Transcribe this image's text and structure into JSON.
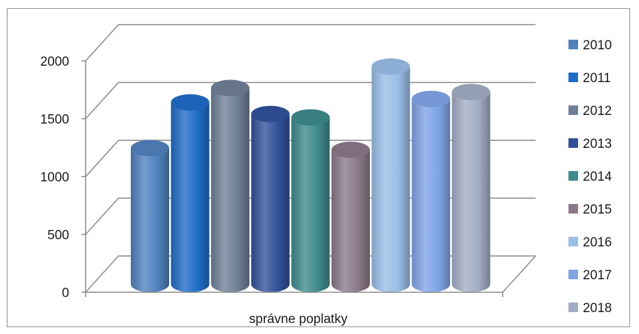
{
  "chart_data": {
    "type": "bar",
    "categories": [
      "správne poplatky"
    ],
    "series": [
      {
        "name": "2010",
        "values": [
          1175
        ],
        "color": "#4f81bd"
      },
      {
        "name": "2011",
        "values": [
          1570
        ],
        "color": "#1f6cc7"
      },
      {
        "name": "2012",
        "values": [
          1695
        ],
        "color": "#6f7f96"
      },
      {
        "name": "2013",
        "values": [
          1470
        ],
        "color": "#30509a"
      },
      {
        "name": "2014",
        "values": [
          1440
        ],
        "color": "#3e8a8c"
      },
      {
        "name": "2015",
        "values": [
          1160
        ],
        "color": "#8a7888"
      },
      {
        "name": "2016",
        "values": [
          1880
        ],
        "color": "#98bde6"
      },
      {
        "name": "2017",
        "values": [
          1600
        ],
        "color": "#7fa4e6"
      },
      {
        "name": "2018",
        "values": [
          1660
        ],
        "color": "#a2adc4"
      }
    ],
    "y_ticks": [
      0,
      500,
      1000,
      1500,
      2000
    ],
    "ylim": [
      0,
      2000
    ],
    "shape": "3d-cylinder",
    "grid": true,
    "legend_position": "right",
    "title": "",
    "xlabel": "",
    "ylabel": ""
  }
}
